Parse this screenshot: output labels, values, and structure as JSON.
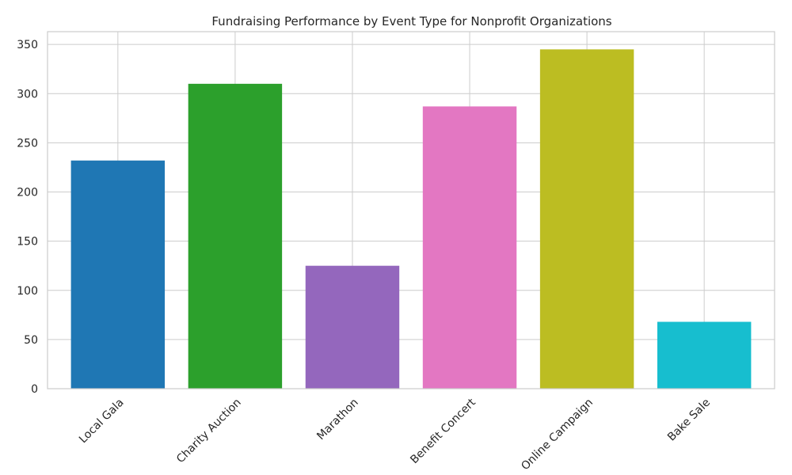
{
  "chart_data": {
    "type": "bar",
    "title": "Fundraising Performance by Event Type for Nonprofit Organizations",
    "xlabel": "",
    "ylabel": "",
    "categories": [
      "Local Gala",
      "Charity Auction",
      "Marathon",
      "Benefit Concert",
      "Online Campaign",
      "Bake Sale"
    ],
    "values": [
      232,
      310,
      125,
      287,
      345,
      68
    ],
    "colors": [
      "#1f77b4",
      "#2ca02c",
      "#9467bd",
      "#e377c2",
      "#bcbd22",
      "#17becf"
    ],
    "ylim": [
      0,
      363
    ],
    "yticks": [
      0,
      50,
      100,
      150,
      200,
      250,
      300,
      350
    ],
    "grid": true,
    "legend": "none",
    "x_tick_rotation": 45
  }
}
